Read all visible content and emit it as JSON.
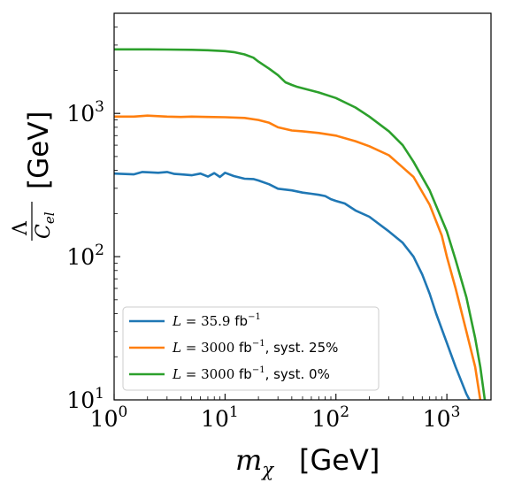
{
  "chart_data": {
    "type": "line",
    "title": "",
    "xlabel": {
      "symbol": "m",
      "subscript": "χ",
      "unit": "[GeV]"
    },
    "ylabel": {
      "numerator": "Λ",
      "denominator": "C",
      "denominator_sub": "el",
      "unit": "[GeV]"
    },
    "xscale": "log",
    "yscale": "log",
    "xlim": [
      1,
      2500
    ],
    "ylim": [
      10,
      5000
    ],
    "x_ticks": [
      {
        "value": 1,
        "base": "10",
        "exp": "0"
      },
      {
        "value": 10,
        "base": "10",
        "exp": "1"
      },
      {
        "value": 100,
        "base": "10",
        "exp": "2"
      },
      {
        "value": 1000,
        "base": "10",
        "exp": "3"
      }
    ],
    "y_ticks": [
      {
        "value": 10,
        "base": "10",
        "exp": "1"
      },
      {
        "value": 100,
        "base": "10",
        "exp": "2"
      },
      {
        "value": 1000,
        "base": "10",
        "exp": "3"
      }
    ],
    "legend_position": "lower-left",
    "grid": false,
    "series": [
      {
        "name": "L = 35.9 fb⁻¹",
        "legend": {
          "pre": "L",
          "eq": " = 35.9 ",
          "unit": "fb",
          "sup": "−1",
          "post": ""
        },
        "color": "#1f77b4",
        "x": [
          1,
          1.5,
          1.8,
          2,
          2.5,
          3,
          3.5,
          4,
          5,
          6,
          7,
          8,
          9,
          10,
          12,
          15,
          18,
          20,
          25,
          30,
          40,
          50,
          60,
          70,
          80,
          90,
          100,
          120,
          150,
          200,
          300,
          400,
          500,
          600,
          700,
          800,
          1000,
          1200,
          1500,
          1600
        ],
        "y": [
          380,
          375,
          390,
          388,
          385,
          390,
          378,
          375,
          370,
          380,
          362,
          383,
          360,
          385,
          365,
          350,
          348,
          340,
          320,
          298,
          290,
          280,
          275,
          270,
          265,
          252,
          245,
          235,
          210,
          190,
          150,
          125,
          100,
          75,
          55,
          40,
          25,
          17,
          11,
          10
        ]
      },
      {
        "name": "L = 3000 fb⁻¹, syst. 25%",
        "legend": {
          "pre": "L",
          "eq": " = 3000 ",
          "unit": "fb",
          "sup": "−1",
          "post": ", syst. 25%"
        },
        "color": "#ff7f0e",
        "x": [
          1,
          1.5,
          2,
          3,
          4,
          5,
          7,
          10,
          15,
          20,
          25,
          30,
          40,
          50,
          70,
          100,
          150,
          200,
          300,
          400,
          500,
          700,
          900,
          1000,
          1200,
          1500,
          1800,
          2000
        ],
        "y": [
          950,
          950,
          965,
          950,
          945,
          950,
          945,
          940,
          930,
          900,
          860,
          800,
          760,
          750,
          730,
          700,
          640,
          590,
          510,
          420,
          360,
          230,
          140,
          100,
          60,
          30,
          17,
          10
        ]
      },
      {
        "name": "L = 3000 fb⁻¹, syst. 0%",
        "legend": {
          "pre": "L",
          "eq": " = 3000 ",
          "unit": "fb",
          "sup": "−1",
          "post": ", syst. 0%"
        },
        "color": "#2ca02c",
        "x": [
          1,
          2,
          3,
          5,
          7,
          10,
          12,
          15,
          18,
          20,
          25,
          30,
          35,
          40,
          45,
          50,
          70,
          100,
          150,
          200,
          300,
          400,
          500,
          700,
          1000,
          1200,
          1500,
          1800,
          2000,
          2200
        ],
        "y": [
          2800,
          2800,
          2790,
          2780,
          2760,
          2720,
          2680,
          2580,
          2450,
          2300,
          2050,
          1850,
          1650,
          1580,
          1530,
          1500,
          1400,
          1280,
          1100,
          950,
          750,
          600,
          460,
          290,
          150,
          95,
          52,
          27,
          17,
          10
        ]
      }
    ]
  }
}
